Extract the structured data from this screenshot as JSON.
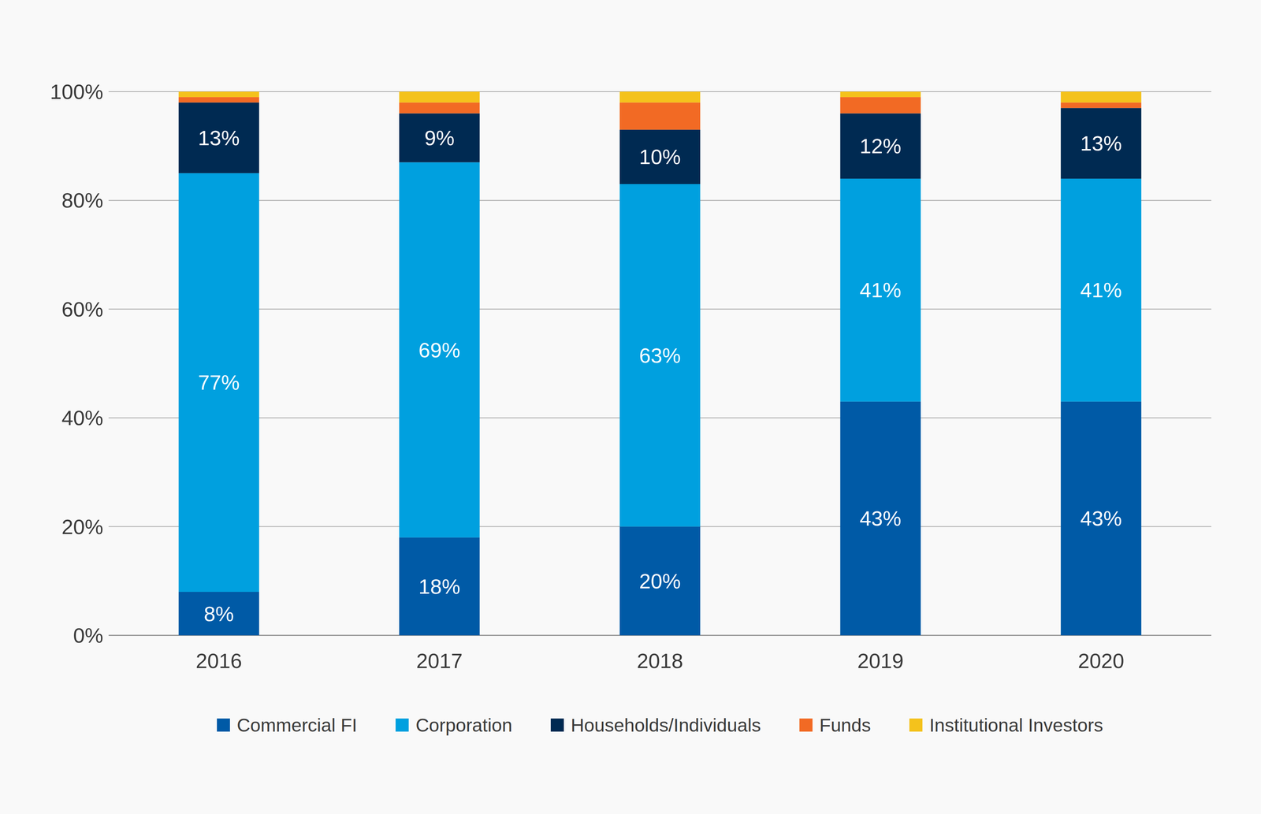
{
  "chart_data": {
    "type": "bar",
    "stacked": true,
    "data_labels": true,
    "grid": true,
    "legend": "bottom",
    "categories": [
      "2016",
      "2017",
      "2018",
      "2019",
      "2020"
    ],
    "ylim": [
      0,
      100
    ],
    "yticks": [
      {
        "value": 0,
        "label": "0%"
      },
      {
        "value": 20,
        "label": "20%"
      },
      {
        "value": 40,
        "label": "40%"
      },
      {
        "value": 60,
        "label": "60%"
      },
      {
        "value": 80,
        "label": "80%"
      },
      {
        "value": 100,
        "label": "100%"
      }
    ],
    "series": [
      {
        "name": "Commercial FI",
        "color": "#005aa6",
        "values": [
          8,
          18,
          20,
          43,
          43
        ],
        "value_labels": [
          "8%",
          "18%",
          "20%",
          "43%",
          "43%"
        ]
      },
      {
        "name": "Corporation",
        "color": "#00a0df",
        "values": [
          77,
          69,
          63,
          41,
          41
        ],
        "value_labels": [
          "77%",
          "69%",
          "63%",
          "41%",
          "41%"
        ]
      },
      {
        "name": "Households/Individuals",
        "color": "#002a52",
        "values": [
          13,
          9,
          10,
          12,
          13
        ],
        "value_labels": [
          "13%",
          "9%",
          "10%",
          "12%",
          "13%"
        ]
      },
      {
        "name": "Funds",
        "color": "#f26a24",
        "values": [
          1,
          2,
          5,
          3,
          1
        ]
      },
      {
        "name": "Institutional Investors",
        "color": "#f4c21c",
        "values": [
          1,
          2,
          2,
          1,
          2
        ]
      }
    ]
  }
}
